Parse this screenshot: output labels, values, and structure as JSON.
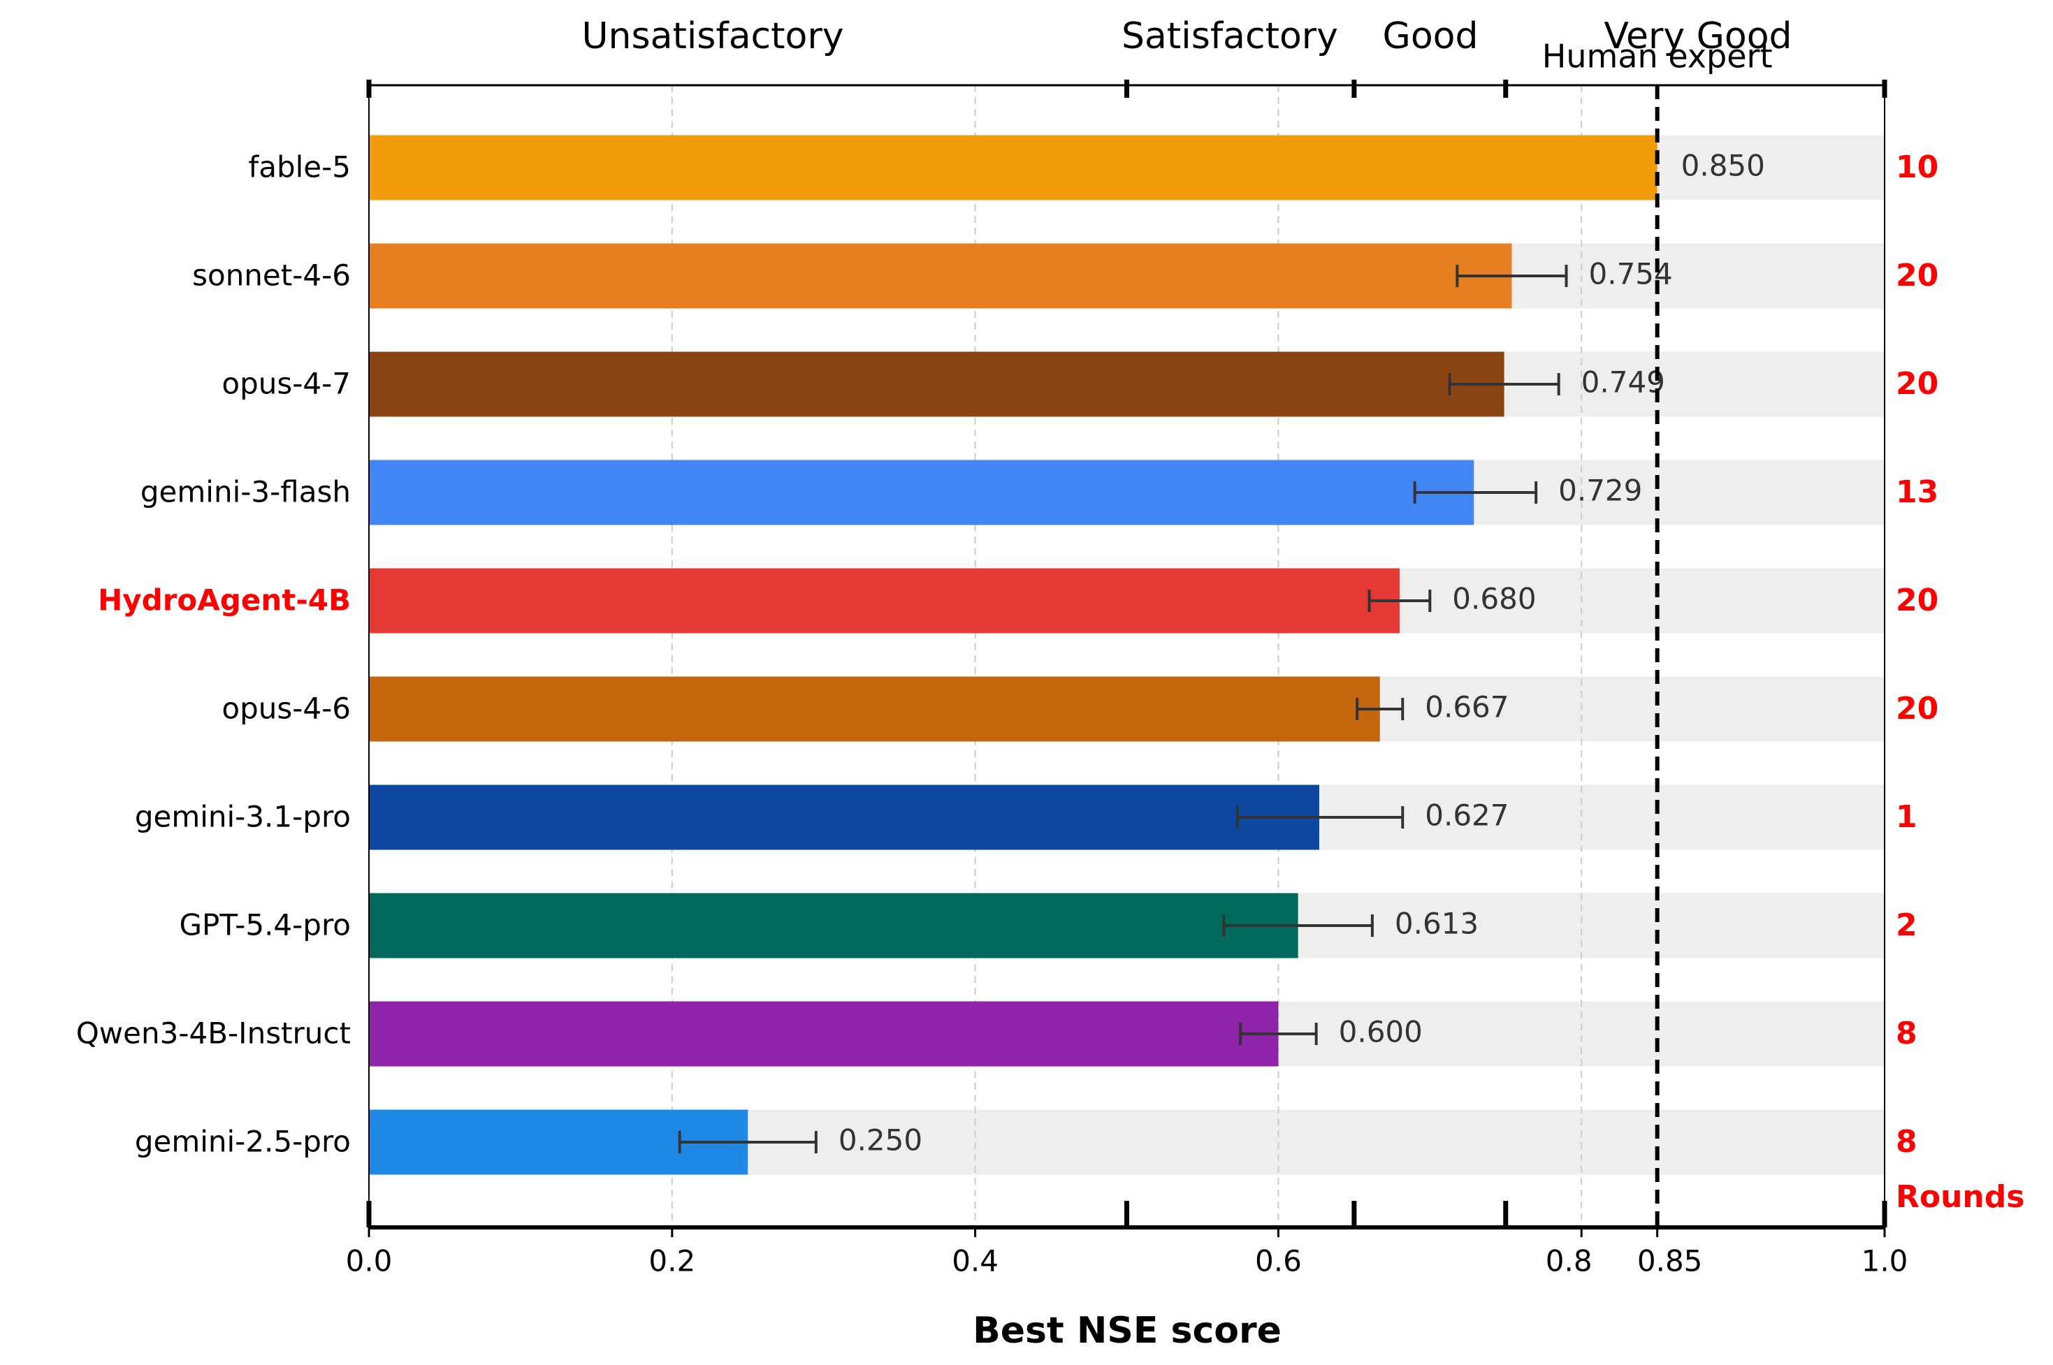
{
  "chart_data": {
    "type": "bar",
    "orientation": "horizontal",
    "xlabel": "Best NSE score",
    "ylabel": "",
    "xlim": [
      0.0,
      1.0
    ],
    "x_ticks": [
      {
        "value": 0.0,
        "label": "0.0"
      },
      {
        "value": 0.2,
        "label": "0.2"
      },
      {
        "value": 0.4,
        "label": "0.4"
      },
      {
        "value": 0.6,
        "label": "0.6"
      },
      {
        "value": 0.8,
        "label": "0.8"
      },
      {
        "value": 0.85,
        "label": "0.85"
      },
      {
        "value": 1.0,
        "label": "1.0"
      }
    ],
    "grid": {
      "vertical_at": [
        0.2,
        0.4,
        0.6,
        0.8
      ],
      "style": "dashed"
    },
    "zones": [
      {
        "label": "Unsatisfactory",
        "from": 0.0,
        "to": 0.5
      },
      {
        "label": "Satisfactory",
        "from": 0.5,
        "to": 0.65
      },
      {
        "label": "Good",
        "from": 0.65,
        "to": 0.75
      },
      {
        "label": "Very Good",
        "from": 0.75,
        "to": 1.0
      }
    ],
    "zone_boundaries": [
      0.5,
      0.65,
      0.75
    ],
    "reference_line": {
      "value": 0.85,
      "label": "Human expert"
    },
    "rounds_label": "Rounds",
    "highlight_color": "#ff0000",
    "background_bar_color": "#eeeeee",
    "bars": [
      {
        "label": "fable-5",
        "value": 0.85,
        "value_label": "0.850",
        "err_low": null,
        "err_high": null,
        "rounds": "10",
        "color": "#f39c0b",
        "highlight": false
      },
      {
        "label": "sonnet-4-6",
        "value": 0.754,
        "value_label": "0.754",
        "err_low": 0.718,
        "err_high": 0.79,
        "rounds": "20",
        "color": "#e67e22",
        "highlight": false
      },
      {
        "label": "opus-4-7",
        "value": 0.749,
        "value_label": "0.749",
        "err_low": 0.713,
        "err_high": 0.785,
        "rounds": "20",
        "color": "#8b4513",
        "highlight": false
      },
      {
        "label": "gemini-3-flash",
        "value": 0.729,
        "value_label": "0.729",
        "err_low": 0.69,
        "err_high": 0.77,
        "rounds": "13",
        "color": "#4285f4",
        "highlight": false
      },
      {
        "label": "HydroAgent-4B",
        "value": 0.68,
        "value_label": "0.680",
        "err_low": 0.66,
        "err_high": 0.7,
        "rounds": "20",
        "color": "#e53935",
        "highlight": true
      },
      {
        "label": "opus-4-6",
        "value": 0.667,
        "value_label": "0.667",
        "err_low": 0.652,
        "err_high": 0.682,
        "rounds": "20",
        "color": "#c5650d",
        "highlight": false
      },
      {
        "label": "gemini-3.1-pro",
        "value": 0.627,
        "value_label": "0.627",
        "err_low": 0.573,
        "err_high": 0.682,
        "rounds": "1",
        "color": "#0d47a1",
        "highlight": false
      },
      {
        "label": "GPT-5.4-pro",
        "value": 0.613,
        "value_label": "0.613",
        "err_low": 0.564,
        "err_high": 0.662,
        "rounds": "2",
        "color": "#00695c",
        "highlight": false
      },
      {
        "label": "Qwen3-4B-Instruct",
        "value": 0.6,
        "value_label": "0.600",
        "err_low": 0.575,
        "err_high": 0.625,
        "rounds": "8",
        "color": "#8e24aa",
        "highlight": false
      },
      {
        "label": "gemini-2.5-pro",
        "value": 0.25,
        "value_label": "0.250",
        "err_low": 0.205,
        "err_high": 0.295,
        "rounds": "8",
        "color": "#1e88e5",
        "highlight": false
      }
    ]
  }
}
